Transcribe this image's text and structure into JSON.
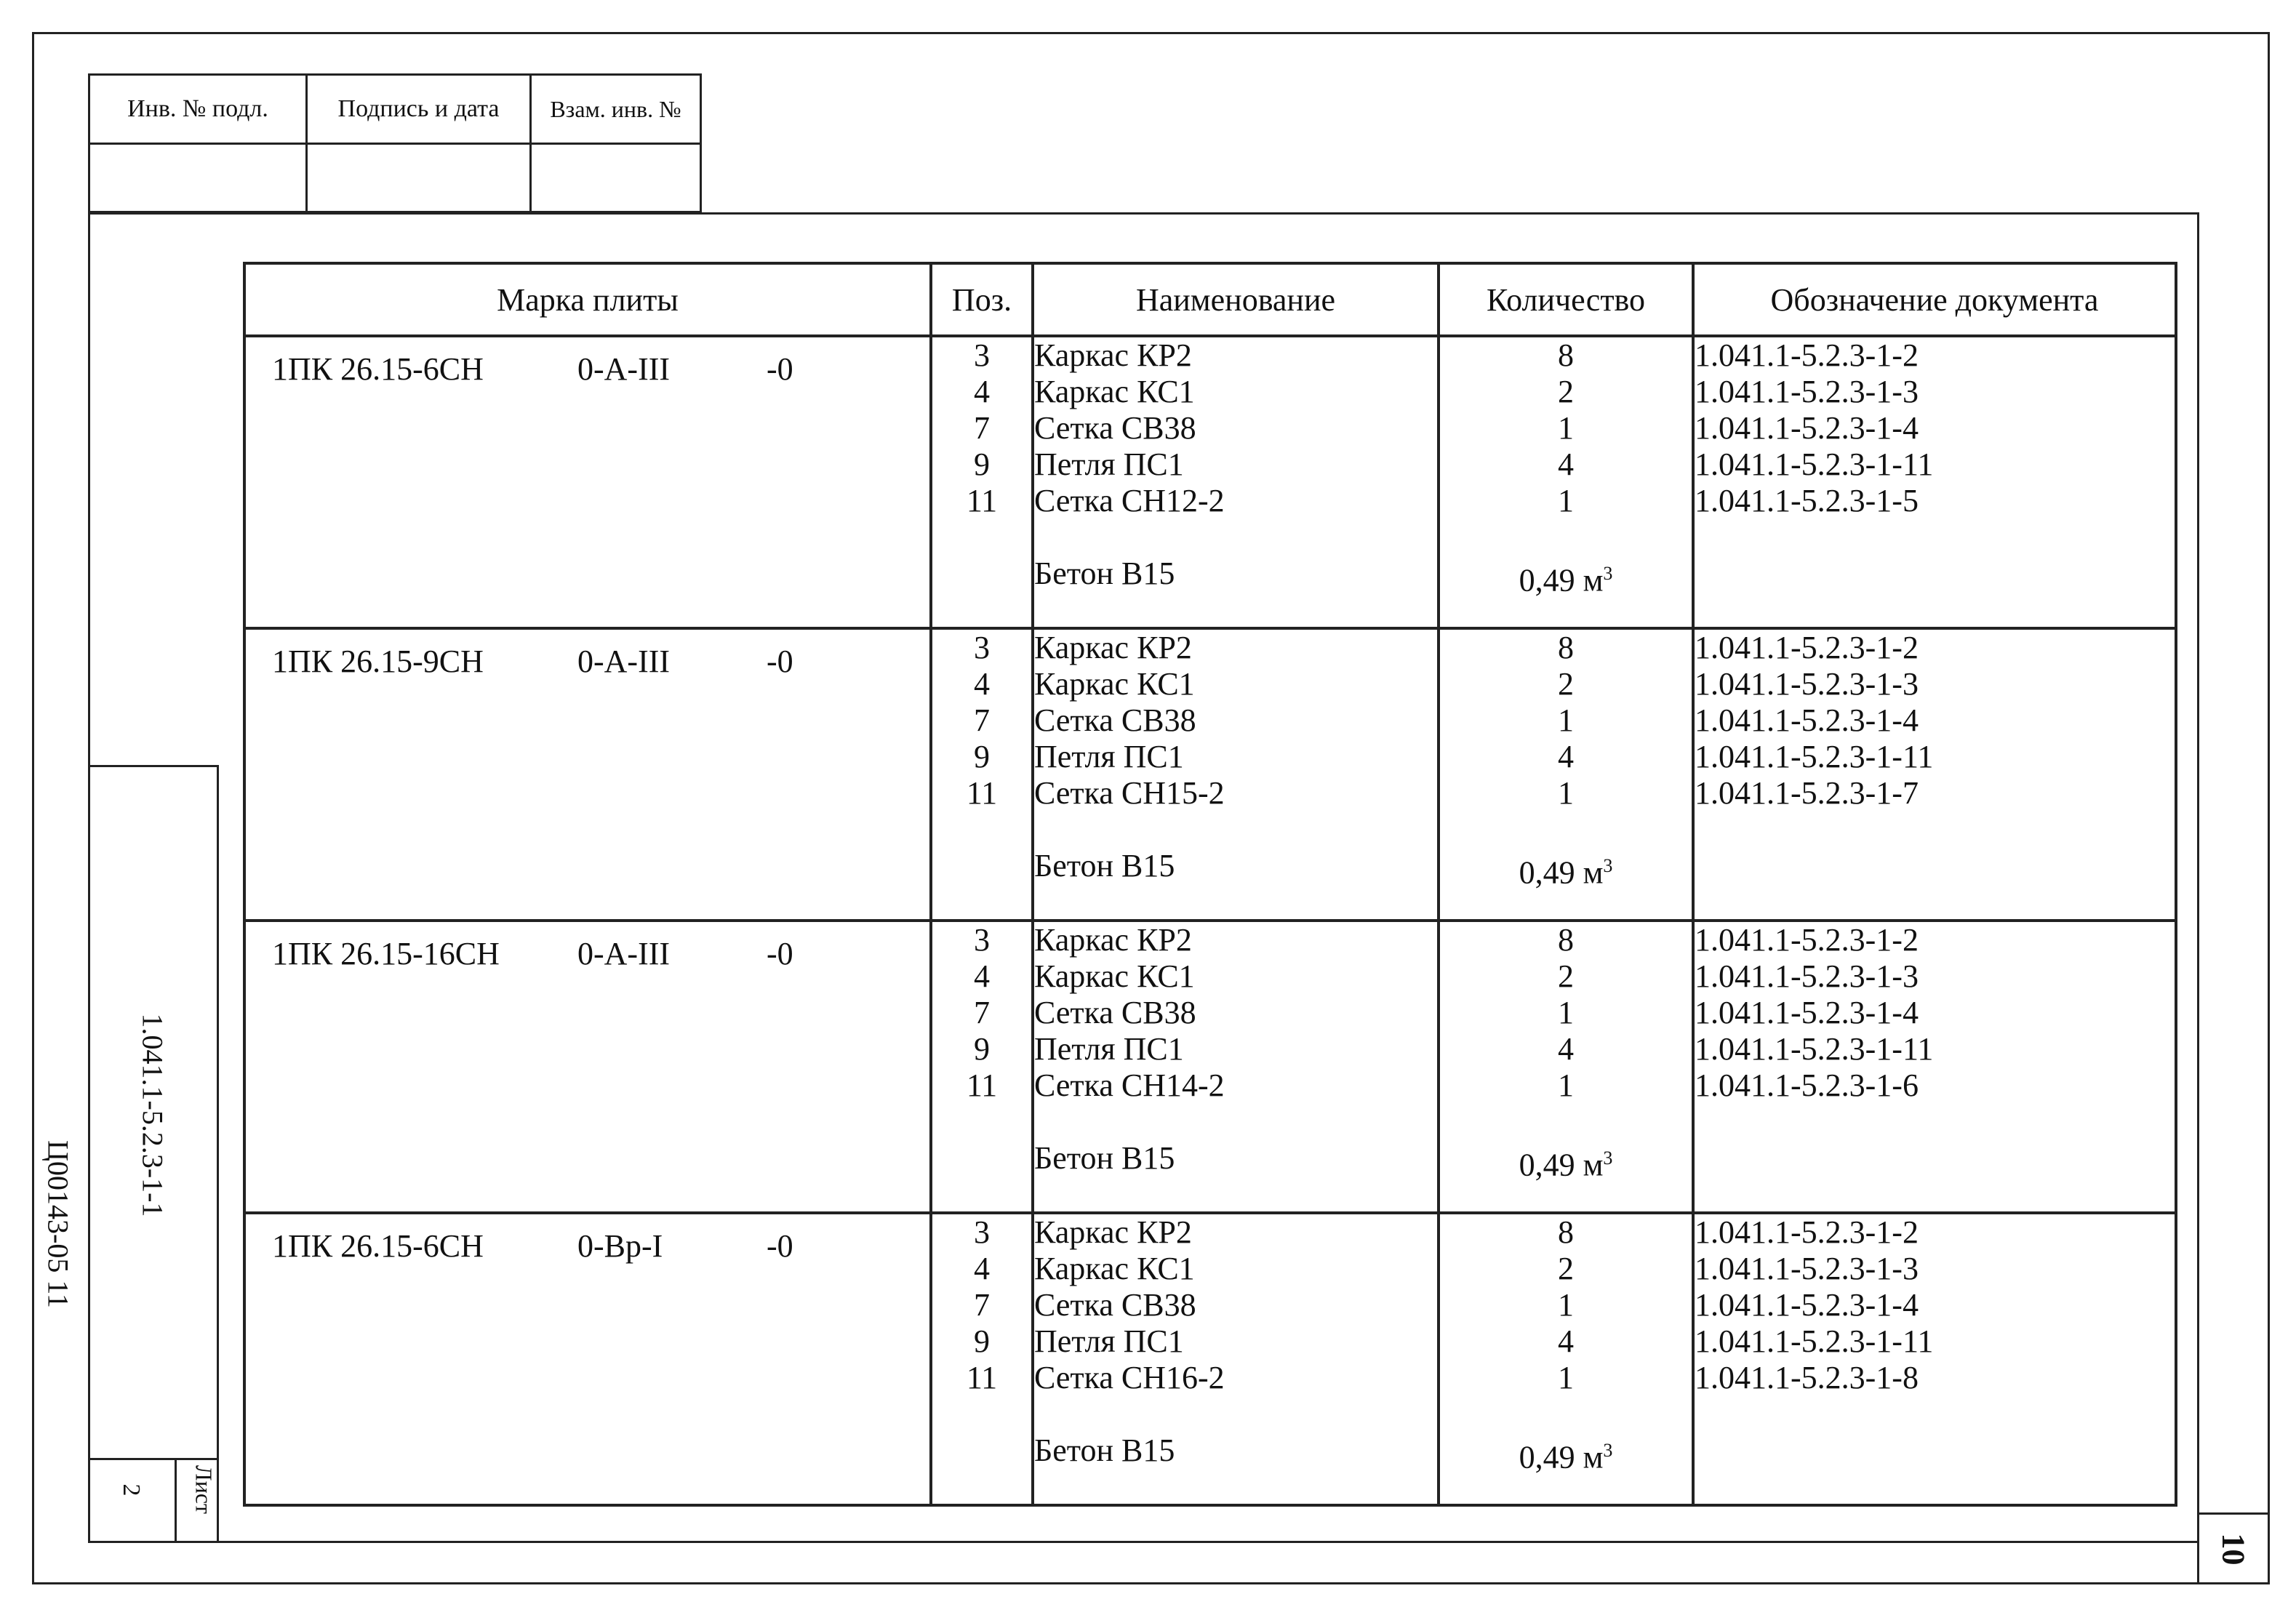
{
  "stamp": {
    "inv_podl": "Инв. № подл.",
    "podpis_data": "Подпись и дата",
    "vzam_inv": "Взам. инв. №"
  },
  "side": {
    "doc_code": "1.041.1-5.2.3-1-1",
    "list_label": "Лист",
    "list_number": "2",
    "archive_code": "Ц00143-05   11"
  },
  "page_number": "10",
  "table": {
    "headers": [
      "Марка плиты",
      "Поз.",
      "Наименование",
      "Количество",
      "Обозначение документа"
    ],
    "groups": [
      {
        "mark": "1ПК 26.15-6СН",
        "steel": "0-А-III",
        "suffix": "-0",
        "positions": [
          "3",
          "4",
          "7",
          "9",
          "11"
        ],
        "names": [
          "Каркас КР2",
          "Каркас КС1",
          "Сетка СВ38",
          "Петля ПС1",
          "Сетка СН12-2"
        ],
        "qty": [
          "8",
          "2",
          "1",
          "4",
          "1"
        ],
        "docs": [
          "1.041.1-5.2.3-1-2",
          "1.041.1-5.2.3-1-3",
          "1.041.1-5.2.3-1-4",
          "1.041.1-5.2.3-1-11",
          "1.041.1-5.2.3-1-5"
        ],
        "concrete_name": "Бетон В15",
        "concrete_qty": "0,49 м",
        "concrete_unit_sup": "3"
      },
      {
        "mark": "1ПК 26.15-9СН",
        "steel": "0-А-III",
        "suffix": "-0",
        "positions": [
          "3",
          "4",
          "7",
          "9",
          "11"
        ],
        "names": [
          "Каркас КР2",
          "Каркас КС1",
          "Сетка СВ38",
          "Петля ПС1",
          "Сетка СН15-2"
        ],
        "qty": [
          "8",
          "2",
          "1",
          "4",
          "1"
        ],
        "docs": [
          "1.041.1-5.2.3-1-2",
          "1.041.1-5.2.3-1-3",
          "1.041.1-5.2.3-1-4",
          "1.041.1-5.2.3-1-11",
          "1.041.1-5.2.3-1-7"
        ],
        "concrete_name": "Бетон В15",
        "concrete_qty": "0,49 м",
        "concrete_unit_sup": "3"
      },
      {
        "mark": "1ПК 26.15-16СН",
        "steel": "0-А-III",
        "suffix": "-0",
        "positions": [
          "3",
          "4",
          "7",
          "9",
          "11"
        ],
        "names": [
          "Каркас КР2",
          "Каркас КС1",
          "Сетка СВ38",
          "Петля ПС1",
          "Сетка СН14-2"
        ],
        "qty": [
          "8",
          "2",
          "1",
          "4",
          "1"
        ],
        "docs": [
          "1.041.1-5.2.3-1-2",
          "1.041.1-5.2.3-1-3",
          "1.041.1-5.2.3-1-4",
          "1.041.1-5.2.3-1-11",
          "1.041.1-5.2.3-1-6"
        ],
        "concrete_name": "Бетон В15",
        "concrete_qty": "0,49 м",
        "concrete_unit_sup": "3"
      },
      {
        "mark": "1ПК 26.15-6СН",
        "steel": "0-Вр-I",
        "suffix": "-0",
        "positions": [
          "3",
          "4",
          "7",
          "9",
          "11"
        ],
        "names": [
          "Каркас КР2",
          "Каркас КС1",
          "Сетка СВ38",
          "Петля ПС1",
          "Сетка СН16-2"
        ],
        "qty": [
          "8",
          "2",
          "1",
          "4",
          "1"
        ],
        "docs": [
          "1.041.1-5.2.3-1-2",
          "1.041.1-5.2.3-1-3",
          "1.041.1-5.2.3-1-4",
          "1.041.1-5.2.3-1-11",
          "1.041.1-5.2.3-1-8"
        ],
        "concrete_name": "Бетон В15",
        "concrete_qty": "0,49 м",
        "concrete_unit_sup": "3"
      }
    ]
  }
}
